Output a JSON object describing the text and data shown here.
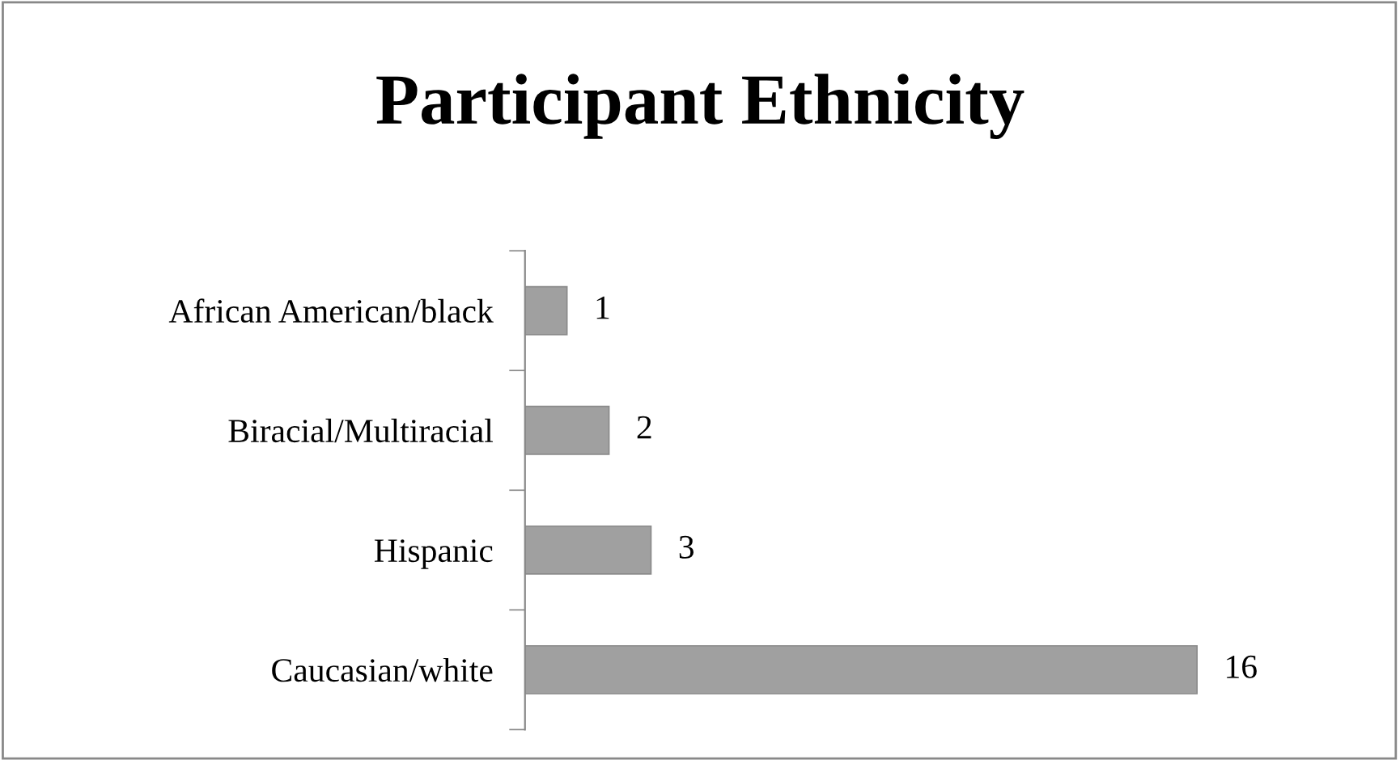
{
  "chart_data": {
    "type": "bar",
    "orientation": "horizontal",
    "title": "Participant Ethnicity",
    "categories": [
      "African American/black",
      "Biracial/Multiracial",
      "Hispanic",
      "Caucasian/white"
    ],
    "values": [
      1,
      2,
      3,
      16
    ],
    "color": "#a0a0a0",
    "data_labels": true,
    "grid": false,
    "legend": false
  }
}
